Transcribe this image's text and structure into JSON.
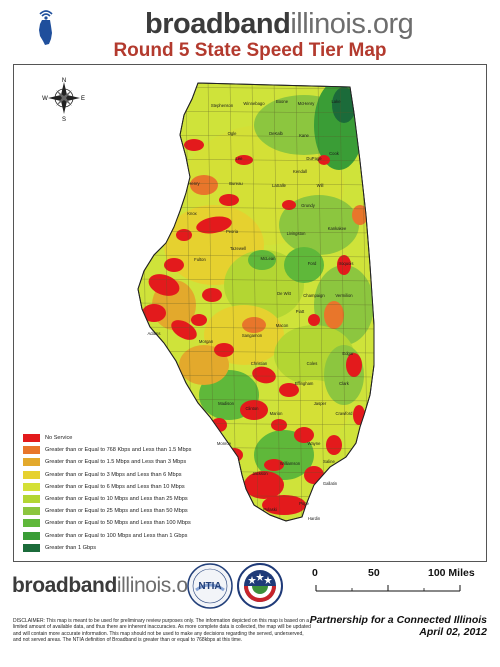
{
  "header": {
    "brand_part1": "broadband",
    "brand_part2": "illinois",
    "brand_part3": ".org",
    "title": "Round 5 State Speed Tier Map"
  },
  "map": {
    "compass": {
      "n": "N",
      "s": "S",
      "e": "E",
      "w": "W"
    },
    "colors": {
      "no_service": "#e31a1c",
      "tier1": "#e8762b",
      "tier2": "#e3a92c",
      "tier3": "#e6d12f",
      "tier4": "#d4e036",
      "tier5": "#b3d633",
      "tier6": "#8cc63f",
      "tier7": "#5fb83a",
      "tier8": "#3a9d36",
      "tier9": "#1b6b3a",
      "water": "#bfe3f2"
    },
    "county_labels": [
      "Winnebago",
      "Boone",
      "McHenry",
      "Lake",
      "Stephenson",
      "Ogle",
      "DeKalb",
      "Kane",
      "Cook",
      "DuPage",
      "Lee",
      "Kendall",
      "Will",
      "Henry",
      "Bureau",
      "LaSalle",
      "Grundy",
      "Kankakee",
      "Knox",
      "Peoria",
      "Livingston",
      "Iroquois",
      "McLean",
      "Fulton",
      "Tazewell",
      "Ford",
      "Vermilion",
      "De Witt",
      "Champaign",
      "Adams",
      "Macon",
      "Piatt",
      "Sangamon",
      "Morgan",
      "Christian",
      "Coles",
      "Edgar",
      "Madison",
      "Effingham",
      "Clark",
      "Marion",
      "Jasper",
      "Crawford",
      "Clinton",
      "Wayne",
      "Saline",
      "Monroe",
      "Williamson",
      "Gallatin",
      "Jackson",
      "Pope",
      "Pulaski",
      "Hardin"
    ]
  },
  "legend": {
    "items": [
      {
        "label": "No Service",
        "color": "#e31a1c"
      },
      {
        "label": "Greater than or Equal to 768 Kbps and Less than 1.5 Mbps",
        "color": "#e8762b"
      },
      {
        "label": "Greater than or Equal to 1.5 Mbps and Less than 3 Mbps",
        "color": "#e3a92c"
      },
      {
        "label": "Greater than or Equal to 3 Mbps and Less than 6 Mbps",
        "color": "#e6d12f"
      },
      {
        "label": "Greater than or Equal to 6 Mbps and Less than 10 Mbps",
        "color": "#d4e036"
      },
      {
        "label": "Greater than or Equal to 10 Mbps and Less than 25 Mbps",
        "color": "#b3d633"
      },
      {
        "label": "Greater than or Equal to 25 Mbps and Less than 50 Mbps",
        "color": "#8cc63f"
      },
      {
        "label": "Greater than or Equal to 50 Mbps and Less than 100 Mbps",
        "color": "#5fb83a"
      },
      {
        "label": "Greater than or Equal to 100 Mbps and Less than 1 Gbps",
        "color": "#3a9d36"
      },
      {
        "label": "Greater than 1 Gbps",
        "color": "#1b6b3a"
      }
    ]
  },
  "footer": {
    "brand_part1": "broadband",
    "brand_part2": "illinois",
    "brand_part3": ".org",
    "ntia_text": "NTIA",
    "scale": {
      "label_0": "0",
      "label_50": "50",
      "label_100": "100 Miles"
    },
    "partnership": "Partnership for a Connected Illinois",
    "date": "April 02, 2012",
    "disclaimer": "DISCLAIMER: This map is meant to be used for preliminary review purposes only. The information depicted on this map is based on a limited amount of available data, and thus there are inherent inaccuracies. As more complete data is collected, the map will be updated and will contain more accurate information. This map should not be used to make any decisions regarding the served, underserved, and not served areas. The NTIA definition of Broadband is greater than or equal to 768kbps at this time."
  }
}
